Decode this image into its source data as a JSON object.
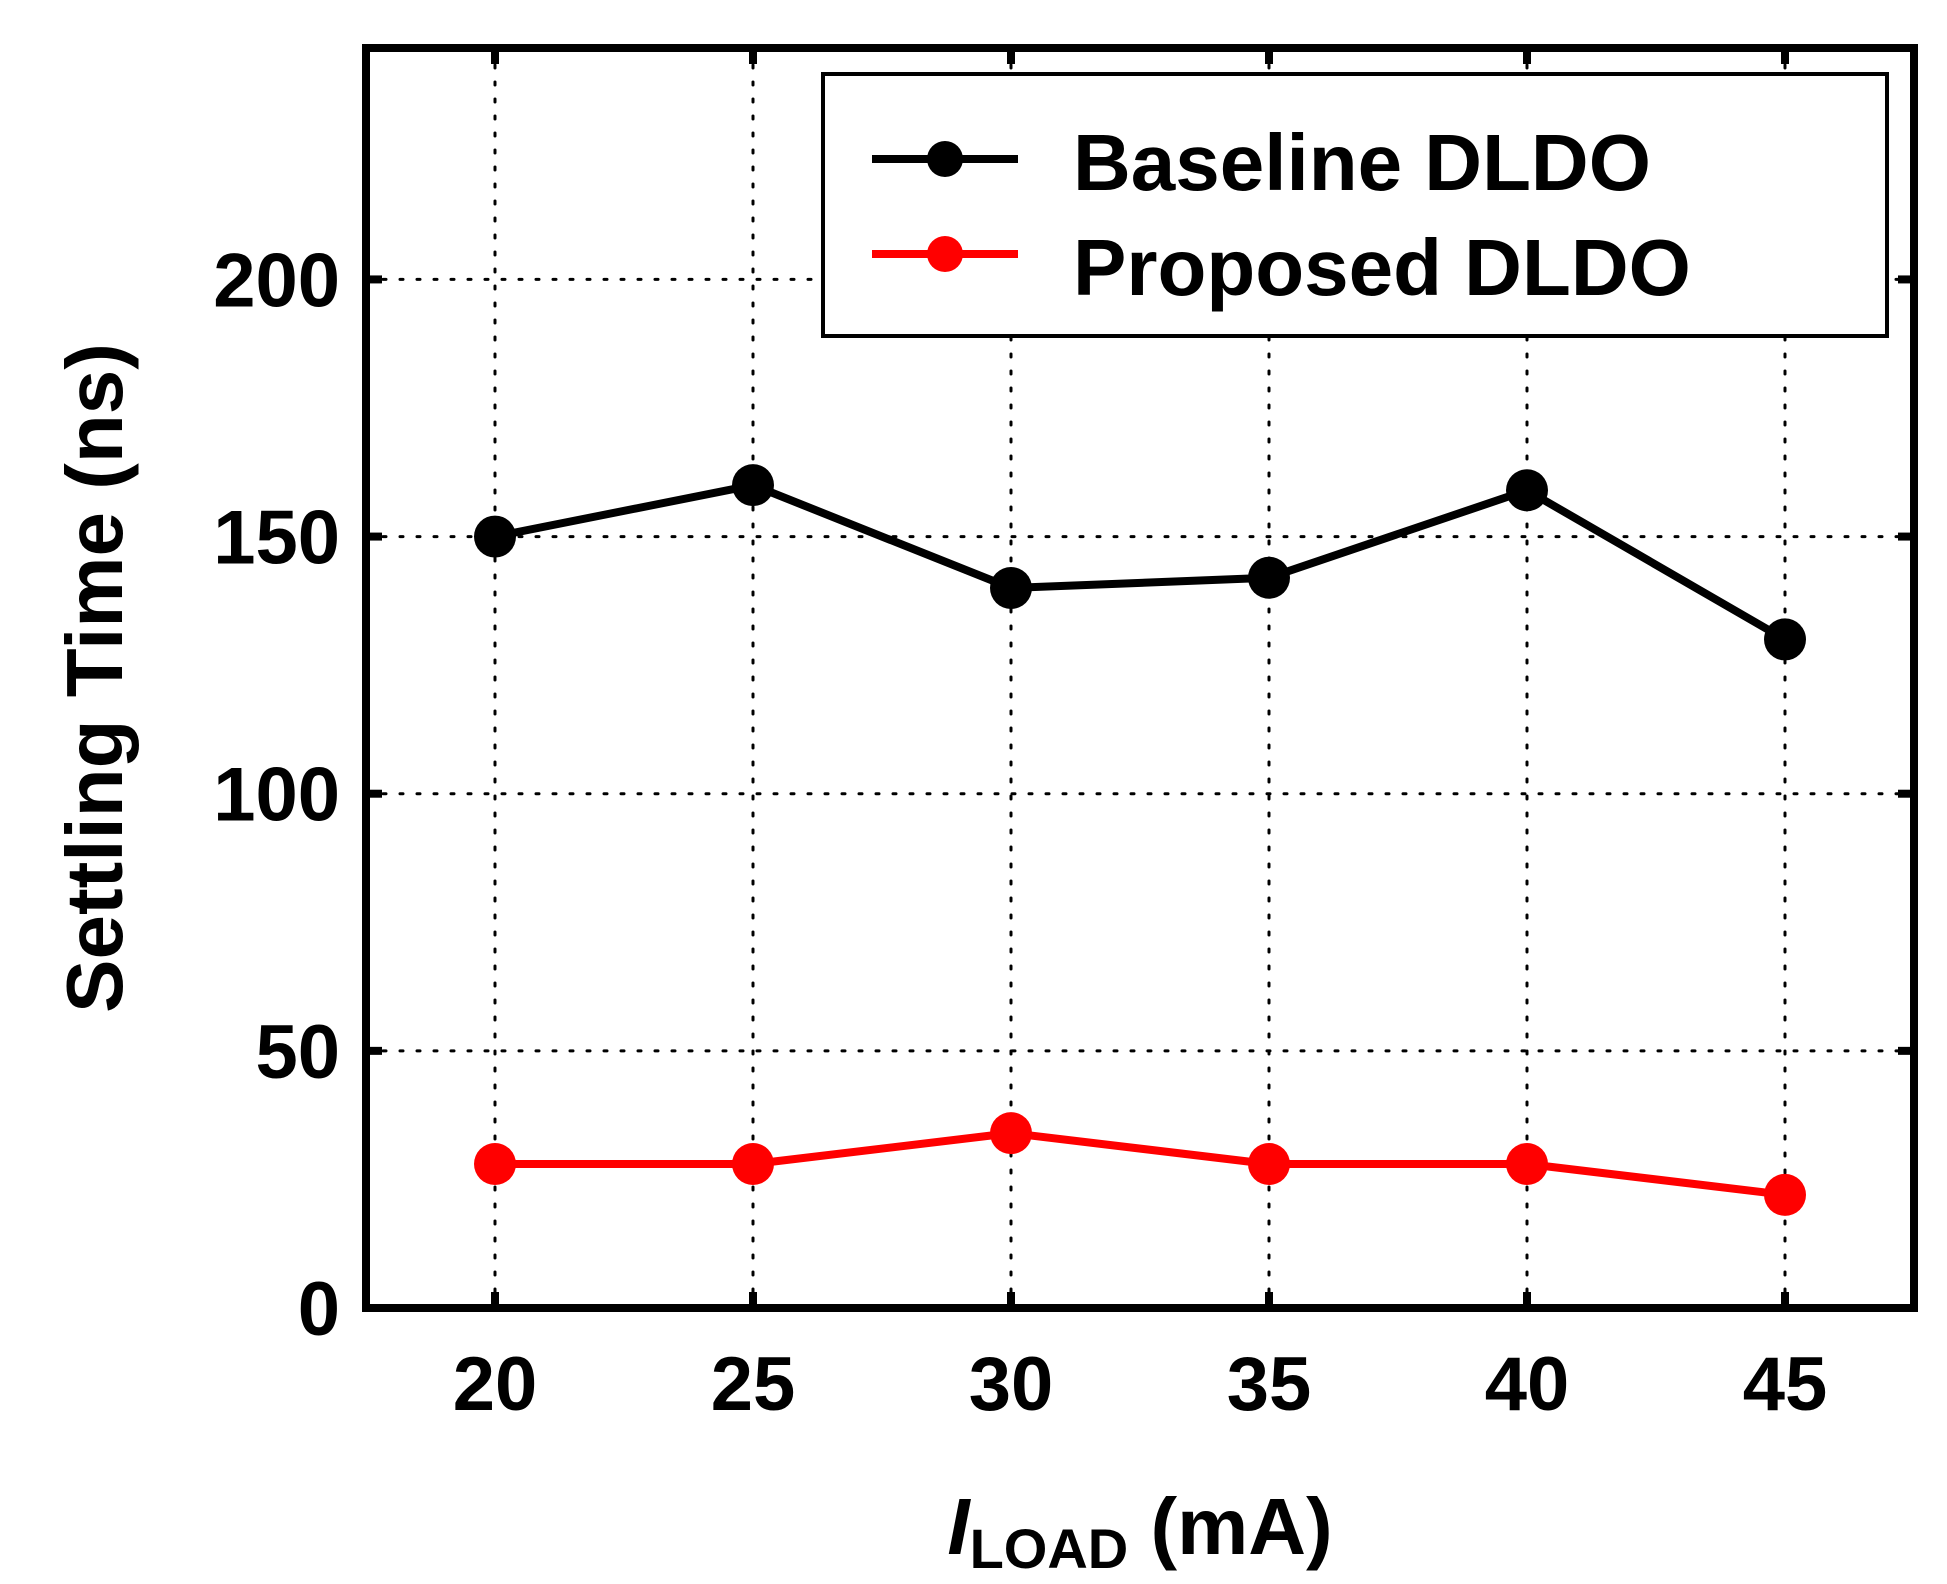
{
  "chart_data": {
    "type": "line",
    "x": [
      20,
      25,
      30,
      35,
      40,
      45
    ],
    "series": [
      {
        "name": "Baseline DLDO",
        "color": "#000000",
        "values": [
          150,
          160,
          140,
          142,
          159,
          130
        ]
      },
      {
        "name": "Proposed DLDO",
        "color": "#ff0000",
        "values": [
          28,
          28,
          34,
          28,
          28,
          22
        ]
      }
    ],
    "xlim": [
      17.5,
      47.5
    ],
    "ylim": [
      0,
      245
    ],
    "xticks": [
      20,
      25,
      30,
      35,
      40,
      45
    ],
    "yticks": [
      0,
      50,
      100,
      150,
      200
    ],
    "xlabel_main": "I",
    "xlabel_sub": "LOAD",
    "xlabel_unit": " (mA)",
    "ylabel": "Settling Time (ns)",
    "grid": true,
    "legend_position": "top-right"
  }
}
